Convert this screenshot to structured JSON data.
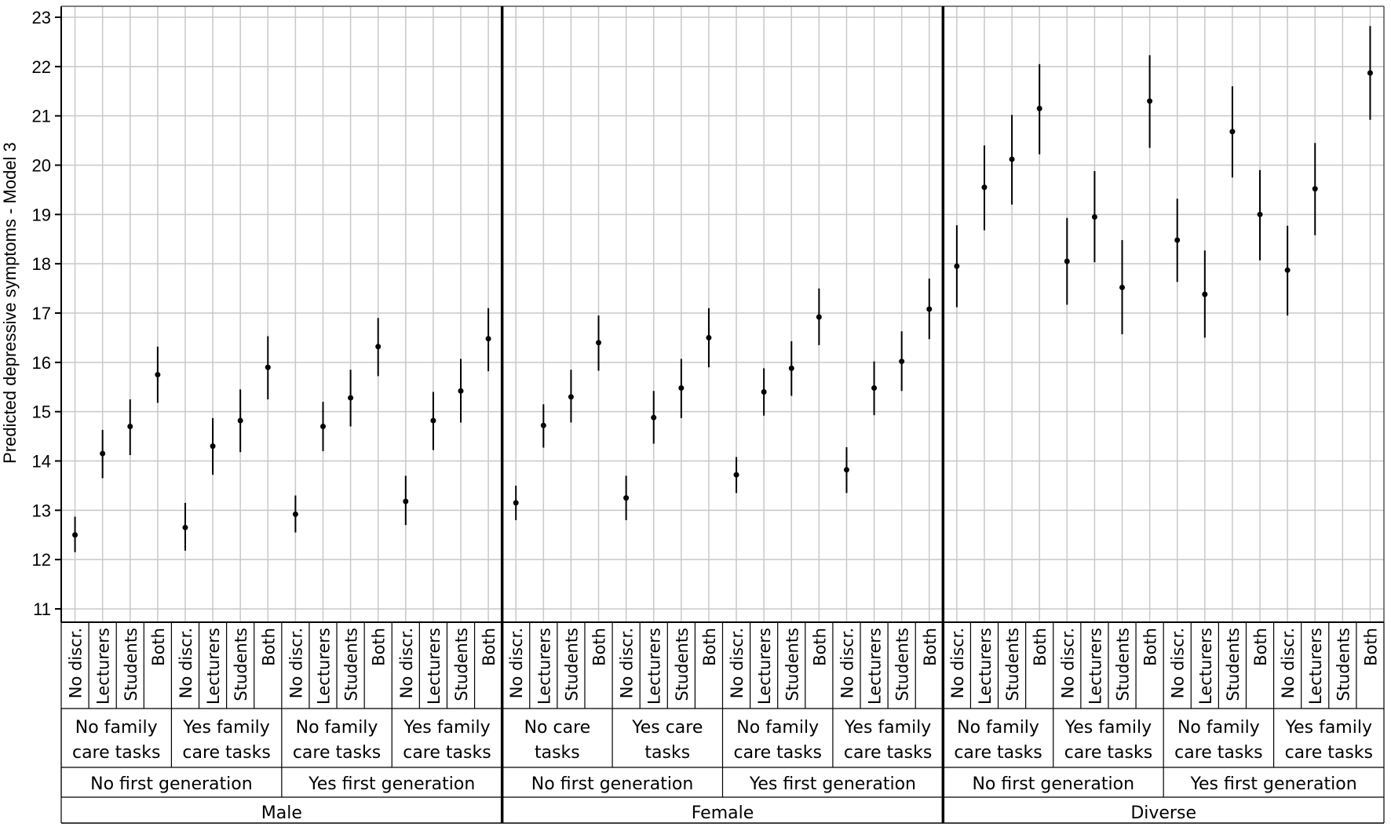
{
  "chart_data": {
    "type": "scatter",
    "ylabel": "Predicted depressive symptoms - Model 3",
    "ylim": [
      11,
      23
    ],
    "yticks": [
      11,
      12,
      13,
      14,
      15,
      16,
      17,
      18,
      19,
      20,
      21,
      22,
      23
    ],
    "grid": "on",
    "error_bars": "vertical",
    "categories": [
      "No discr.",
      "Lecturers",
      "Students",
      "Both",
      "No discr.",
      "Lecturers",
      "Students",
      "Both",
      "No discr.",
      "Lecturers",
      "Students",
      "Both",
      "No discr.",
      "Lecturers",
      "Students",
      "Both",
      "No discr.",
      "Lecturers",
      "Students",
      "Both",
      "No discr.",
      "Lecturers",
      "Students",
      "Both",
      "No discr.",
      "Lecturers",
      "Students",
      "Both",
      "No discr.",
      "Lecturers",
      "Students",
      "Both",
      "No discr.",
      "Lecturers",
      "Students",
      "Both",
      "No discr.",
      "Lecturers",
      "Students",
      "Both",
      "No discr.",
      "Lecturers",
      "Students",
      "Both",
      "No discr.",
      "Lecturers",
      "Students",
      "Both"
    ],
    "values": [
      12.5,
      14.15,
      14.7,
      15.75,
      12.65,
      14.3,
      14.82,
      15.9,
      12.92,
      14.7,
      15.28,
      16.32,
      13.18,
      14.82,
      15.42,
      16.48,
      13.15,
      14.72,
      15.3,
      16.4,
      13.25,
      14.88,
      15.48,
      16.5,
      13.72,
      15.4,
      15.88,
      16.92,
      13.82,
      15.48,
      16.02,
      17.08,
      17.95,
      19.55,
      20.12,
      21.15,
      18.05,
      18.95,
      17.52,
      21.3,
      18.48,
      17.38,
      20.68,
      19.0,
      17.87,
      19.52,
      null,
      21.87
    ],
    "lower": [
      12.15,
      13.65,
      14.12,
      15.18,
      12.18,
      13.72,
      14.18,
      15.25,
      12.55,
      14.2,
      14.7,
      15.72,
      12.7,
      14.22,
      14.78,
      15.82,
      12.8,
      14.27,
      14.78,
      15.83,
      12.8,
      14.35,
      14.87,
      15.9,
      13.35,
      14.92,
      15.32,
      16.35,
      13.35,
      14.93,
      15.42,
      16.47,
      17.12,
      18.68,
      19.2,
      20.22,
      17.17,
      18.03,
      16.57,
      20.35,
      17.63,
      16.5,
      19.75,
      18.07,
      16.95,
      18.58,
      null,
      20.92
    ],
    "upper": [
      12.87,
      14.63,
      15.25,
      16.32,
      13.15,
      14.87,
      15.45,
      16.53,
      13.3,
      15.2,
      15.85,
      16.9,
      13.7,
      15.4,
      16.07,
      17.1,
      13.5,
      15.15,
      15.85,
      16.95,
      13.7,
      15.42,
      16.07,
      17.1,
      14.08,
      15.88,
      16.43,
      17.5,
      14.28,
      16.02,
      16.63,
      17.7,
      18.78,
      20.4,
      21.02,
      22.05,
      18.93,
      19.88,
      18.48,
      22.23,
      19.32,
      18.27,
      21.6,
      19.9,
      18.77,
      20.45,
      null,
      22.82
    ],
    "care_groups": [
      [
        "No family",
        "care tasks"
      ],
      [
        "Yes family",
        "care tasks"
      ],
      [
        "No family",
        "care tasks"
      ],
      [
        "Yes family",
        "care tasks"
      ],
      [
        "No care",
        "tasks"
      ],
      [
        "Yes care",
        "tasks"
      ],
      [
        "No family",
        "care tasks"
      ],
      [
        "Yes family",
        "care tasks"
      ],
      [
        "No family",
        "care tasks"
      ],
      [
        "Yes family",
        "care tasks"
      ],
      [
        "No family",
        "care tasks"
      ],
      [
        "Yes family",
        "care tasks"
      ]
    ],
    "generation_groups": [
      "No first generation",
      "Yes first generation",
      "No first generation",
      "Yes first generation",
      "No first generation",
      "Yes first generation"
    ],
    "gender_groups": [
      "Male",
      "Female",
      "Diverse"
    ],
    "colors": {
      "marker": "#000000",
      "grid": "#c8c8c8",
      "axis": "#000000"
    }
  }
}
